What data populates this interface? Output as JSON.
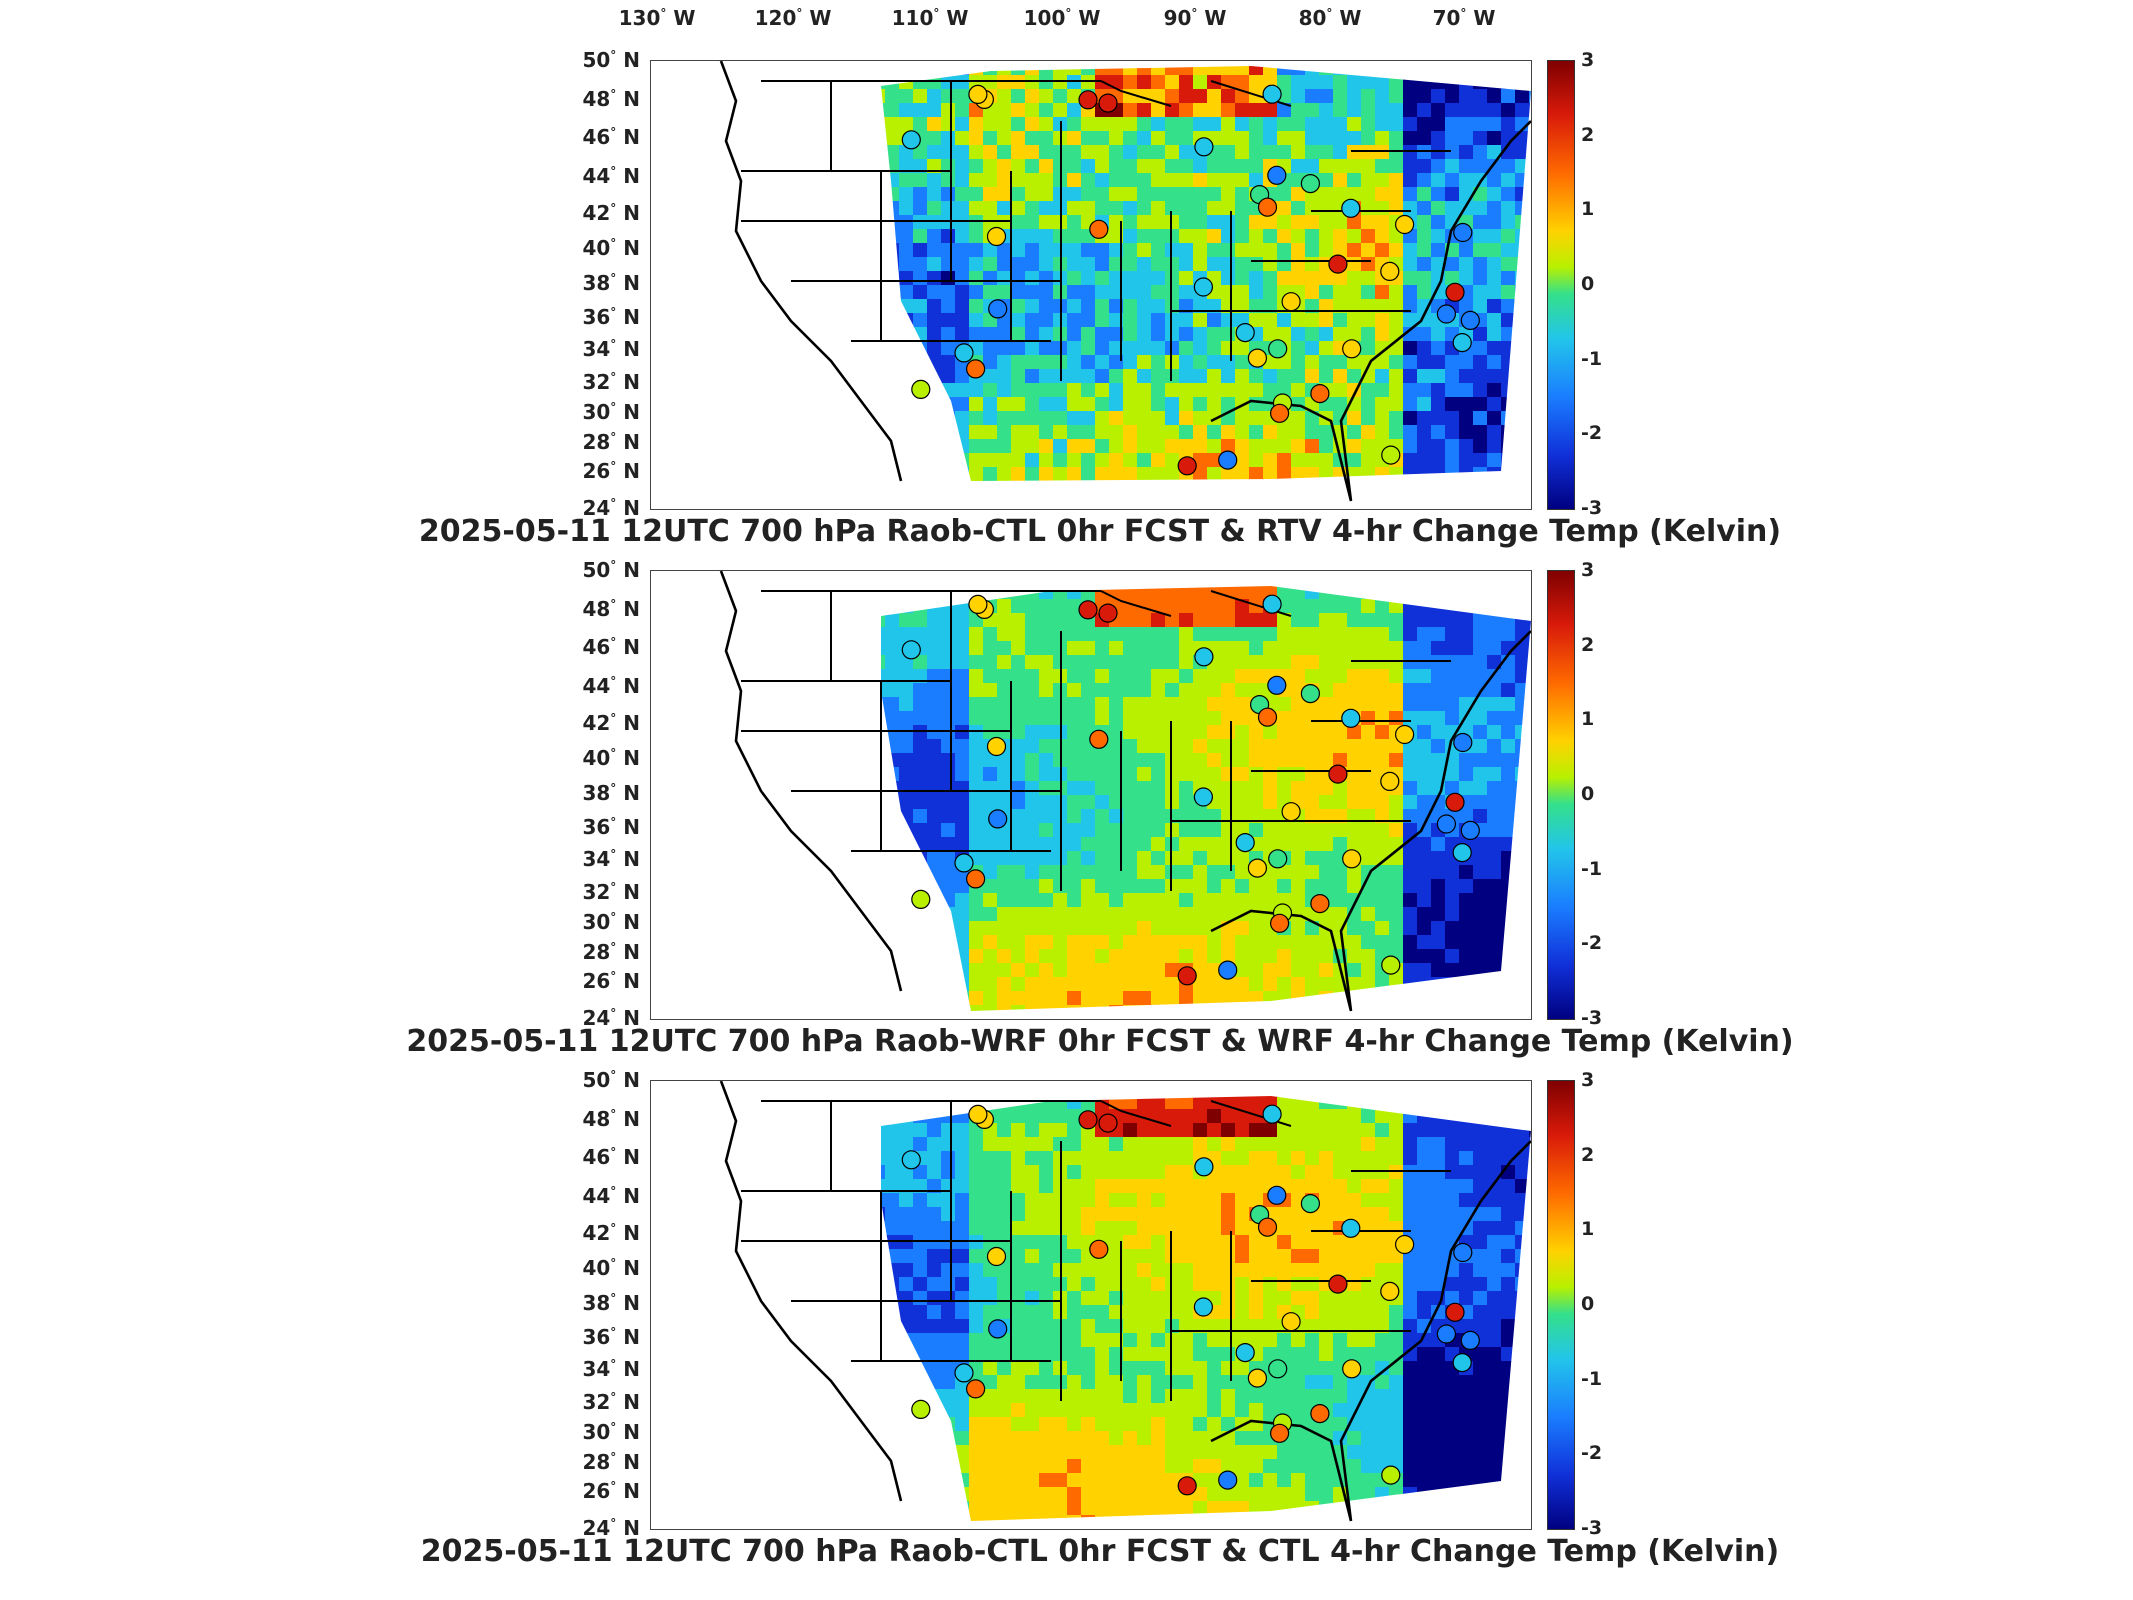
{
  "lon_labels": [
    "130",
    "120",
    "110",
    "100",
    "90",
    "80",
    "70"
  ],
  "lon_suffix": "W",
  "lat_labels": [
    "50",
    "48",
    "46",
    "44",
    "42",
    "40",
    "38",
    "36",
    "34",
    "32",
    "30",
    "28",
    "26",
    "24"
  ],
  "lat_suffix": "N",
  "colorbar": {
    "ticks": [
      "3",
      "2",
      "1",
      "0",
      "-1",
      "-2",
      "-3"
    ],
    "range": [
      -3,
      3
    ],
    "colors": [
      "#000080",
      "#1030d8",
      "#1a7dff",
      "#22c5ea",
      "#34e08a",
      "#b8f000",
      "#ffd200",
      "#ff6a00",
      "#d81a0a",
      "#7f0000"
    ]
  },
  "panels": [
    {
      "title": "2025-05-11 12UTC 700 hPa Raob-CTL 0hr FCST & RTV 4-hr Change Temp (Kelvin)"
    },
    {
      "title": "2025-05-11 12UTC 700 hPa Raob-WRF 0hr FCST & WRF 4-hr Change Temp (Kelvin)"
    },
    {
      "title": "2025-05-11 12UTC 700 hPa Raob-CTL 0hr FCST & CTL 4-hr Change Temp (Kelvin)"
    }
  ]
}
